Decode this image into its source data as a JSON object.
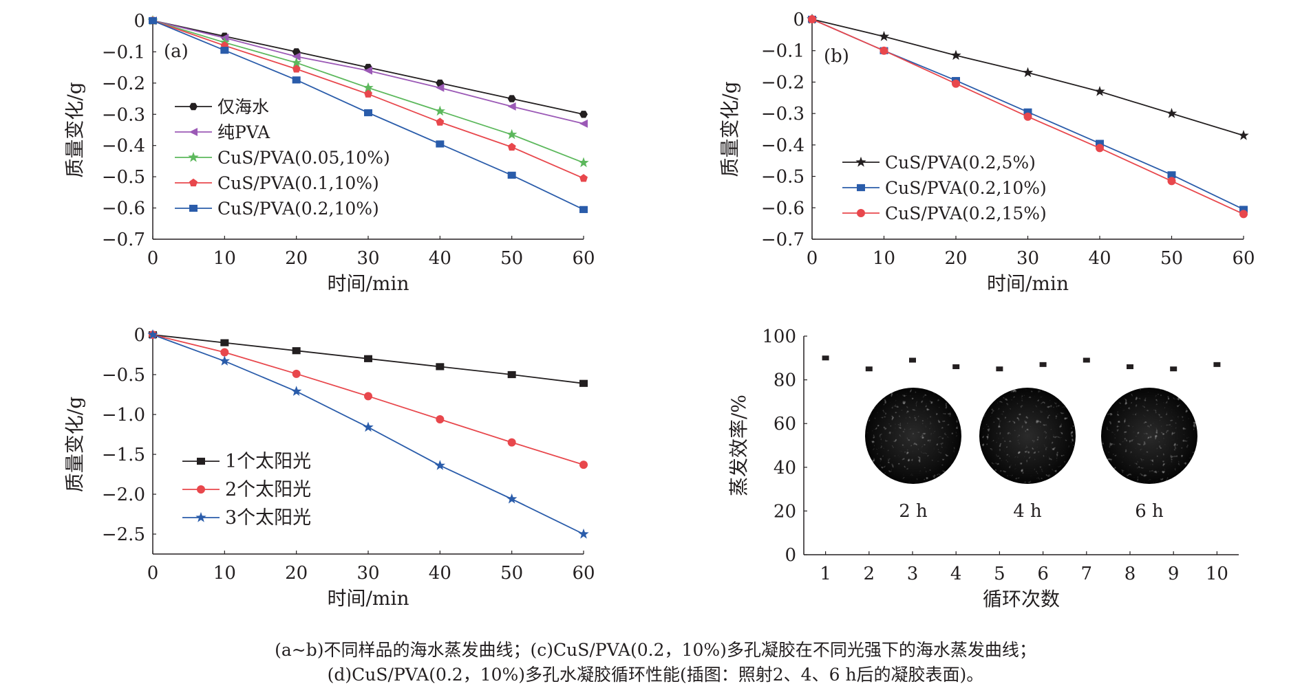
{
  "chart_data": [
    {
      "id": "a",
      "type": "line",
      "panel_label": "(a)",
      "xlabel": "时间/min",
      "ylabel": "质量变化/g",
      "x": [
        0,
        10,
        20,
        30,
        40,
        50,
        60
      ],
      "xlim": [
        0,
        60
      ],
      "ylim": [
        -0.7,
        0
      ],
      "xticks": [
        0,
        10,
        20,
        30,
        40,
        50,
        60
      ],
      "yticks": [
        0,
        -0.1,
        -0.2,
        -0.3,
        -0.4,
        -0.5,
        -0.6,
        -0.7
      ],
      "ytick_labels": [
        "0",
        "-0.1",
        "-0.2",
        "-0.3",
        "-0.4",
        "-0.5",
        "-0.6",
        "-0.7"
      ],
      "grid": false,
      "legend_position": "left",
      "series": [
        {
          "name": "仅海水",
          "color": "#231f20",
          "marker": "hexagon",
          "values": [
            0,
            -0.05,
            -0.1,
            -0.15,
            -0.2,
            -0.25,
            -0.3
          ]
        },
        {
          "name": "纯PVA",
          "color": "#9b59b6",
          "marker": "triangle-left",
          "values": [
            0,
            -0.055,
            -0.115,
            -0.16,
            -0.215,
            -0.275,
            -0.33
          ]
        },
        {
          "name": "CuS/PVA(0.05,10%)",
          "color": "#5cb85c",
          "marker": "star",
          "values": [
            0,
            -0.07,
            -0.135,
            -0.215,
            -0.29,
            -0.365,
            -0.455
          ]
        },
        {
          "name": "CuS/PVA(0.1,10%)",
          "color": "#e8474c",
          "marker": "pentagon",
          "values": [
            0,
            -0.08,
            -0.155,
            -0.235,
            -0.325,
            -0.405,
            -0.505
          ]
        },
        {
          "name": "CuS/PVA(0.2,10%)",
          "color": "#2a5caa",
          "marker": "square",
          "values": [
            0,
            -0.095,
            -0.19,
            -0.295,
            -0.395,
            -0.495,
            -0.605
          ]
        }
      ]
    },
    {
      "id": "b",
      "type": "line",
      "panel_label": "(b)",
      "xlabel": "时间/min",
      "ylabel": "质量变化/g",
      "x": [
        0,
        10,
        20,
        30,
        40,
        50,
        60
      ],
      "xlim": [
        0,
        60
      ],
      "ylim": [
        -0.7,
        0
      ],
      "xticks": [
        0,
        10,
        20,
        30,
        40,
        50,
        60
      ],
      "yticks": [
        0,
        -0.1,
        -0.2,
        -0.3,
        -0.4,
        -0.5,
        -0.6,
        -0.7
      ],
      "ytick_labels": [
        "0",
        "-0.1",
        "-0.2",
        "-0.3",
        "-0.4",
        "-0.5",
        "-0.6",
        "-0.7"
      ],
      "grid": false,
      "legend_position": "bottom-left",
      "series": [
        {
          "name": "CuS/PVA(0.2,5%)",
          "color": "#231f20",
          "marker": "star",
          "values": [
            0,
            -0.055,
            -0.115,
            -0.17,
            -0.23,
            -0.3,
            -0.37
          ]
        },
        {
          "name": "CuS/PVA(0.2,10%)",
          "color": "#2a5caa",
          "marker": "square",
          "values": [
            0,
            -0.1,
            -0.195,
            -0.295,
            -0.395,
            -0.495,
            -0.605
          ]
        },
        {
          "name": "CuS/PVA(0.2,15%)",
          "color": "#e8474c",
          "marker": "circle",
          "values": [
            0,
            -0.1,
            -0.205,
            -0.31,
            -0.41,
            -0.515,
            -0.62
          ]
        }
      ]
    },
    {
      "id": "c",
      "type": "line",
      "xlabel": "时间/min",
      "ylabel": "质量变化/g",
      "x": [
        0,
        10,
        20,
        30,
        40,
        50,
        60
      ],
      "xlim": [
        0,
        60
      ],
      "ylim": [
        -2.75,
        0
      ],
      "xticks": [
        0,
        10,
        20,
        30,
        40,
        50,
        60
      ],
      "yticks": [
        0,
        -0.5,
        -1.0,
        -1.5,
        -2.0,
        -2.5
      ],
      "ytick_labels": [
        "0",
        "-0.5",
        "-1.0",
        "-1.5",
        "-2.0",
        "-2.5"
      ],
      "grid": false,
      "legend_position": "bottom-left",
      "series": [
        {
          "name": "1个太阳光",
          "color": "#231f20",
          "marker": "square",
          "values": [
            0,
            -0.1,
            -0.2,
            -0.3,
            -0.4,
            -0.5,
            -0.61
          ]
        },
        {
          "name": "2个太阳光",
          "color": "#e8474c",
          "marker": "circle",
          "values": [
            0,
            -0.22,
            -0.49,
            -0.77,
            -1.06,
            -1.35,
            -1.63
          ]
        },
        {
          "name": "3个太阳光",
          "color": "#2a5caa",
          "marker": "star",
          "values": [
            0,
            -0.33,
            -0.71,
            -1.16,
            -1.64,
            -2.06,
            -2.5
          ]
        }
      ]
    },
    {
      "id": "d",
      "type": "scatter",
      "xlabel": "循环次数",
      "ylabel": "蒸发效率/%",
      "x": [
        1,
        2,
        3,
        4,
        5,
        6,
        7,
        8,
        9,
        10
      ],
      "xlim": [
        0.5,
        10.5
      ],
      "ylim": [
        0,
        100
      ],
      "xticks": [
        1,
        2,
        3,
        4,
        5,
        6,
        7,
        8,
        9,
        10
      ],
      "yticks": [
        0,
        20,
        40,
        60,
        80,
        100
      ],
      "ytick_labels": [
        "0",
        "20",
        "40",
        "60",
        "80",
        "100"
      ],
      "grid": false,
      "series": [
        {
          "color": "#231f20",
          "marker": "square",
          "values": [
            90,
            85,
            89,
            86,
            85,
            87,
            89,
            86,
            85,
            87
          ]
        }
      ],
      "inset": {
        "labels": [
          "2 h",
          "4 h",
          "6 h"
        ]
      }
    }
  ],
  "caption": {
    "line1": "(a~b)不同样品的海水蒸发曲线；(c)CuS/PVA(0.2，10%)多孔凝胶在不同光强下的海水蒸发曲线；",
    "line2": "(d)CuS/PVA(0.2，10%)多孔水凝胶循环性能(插图：照射2、4、6 h后的凝胶表面)。"
  }
}
